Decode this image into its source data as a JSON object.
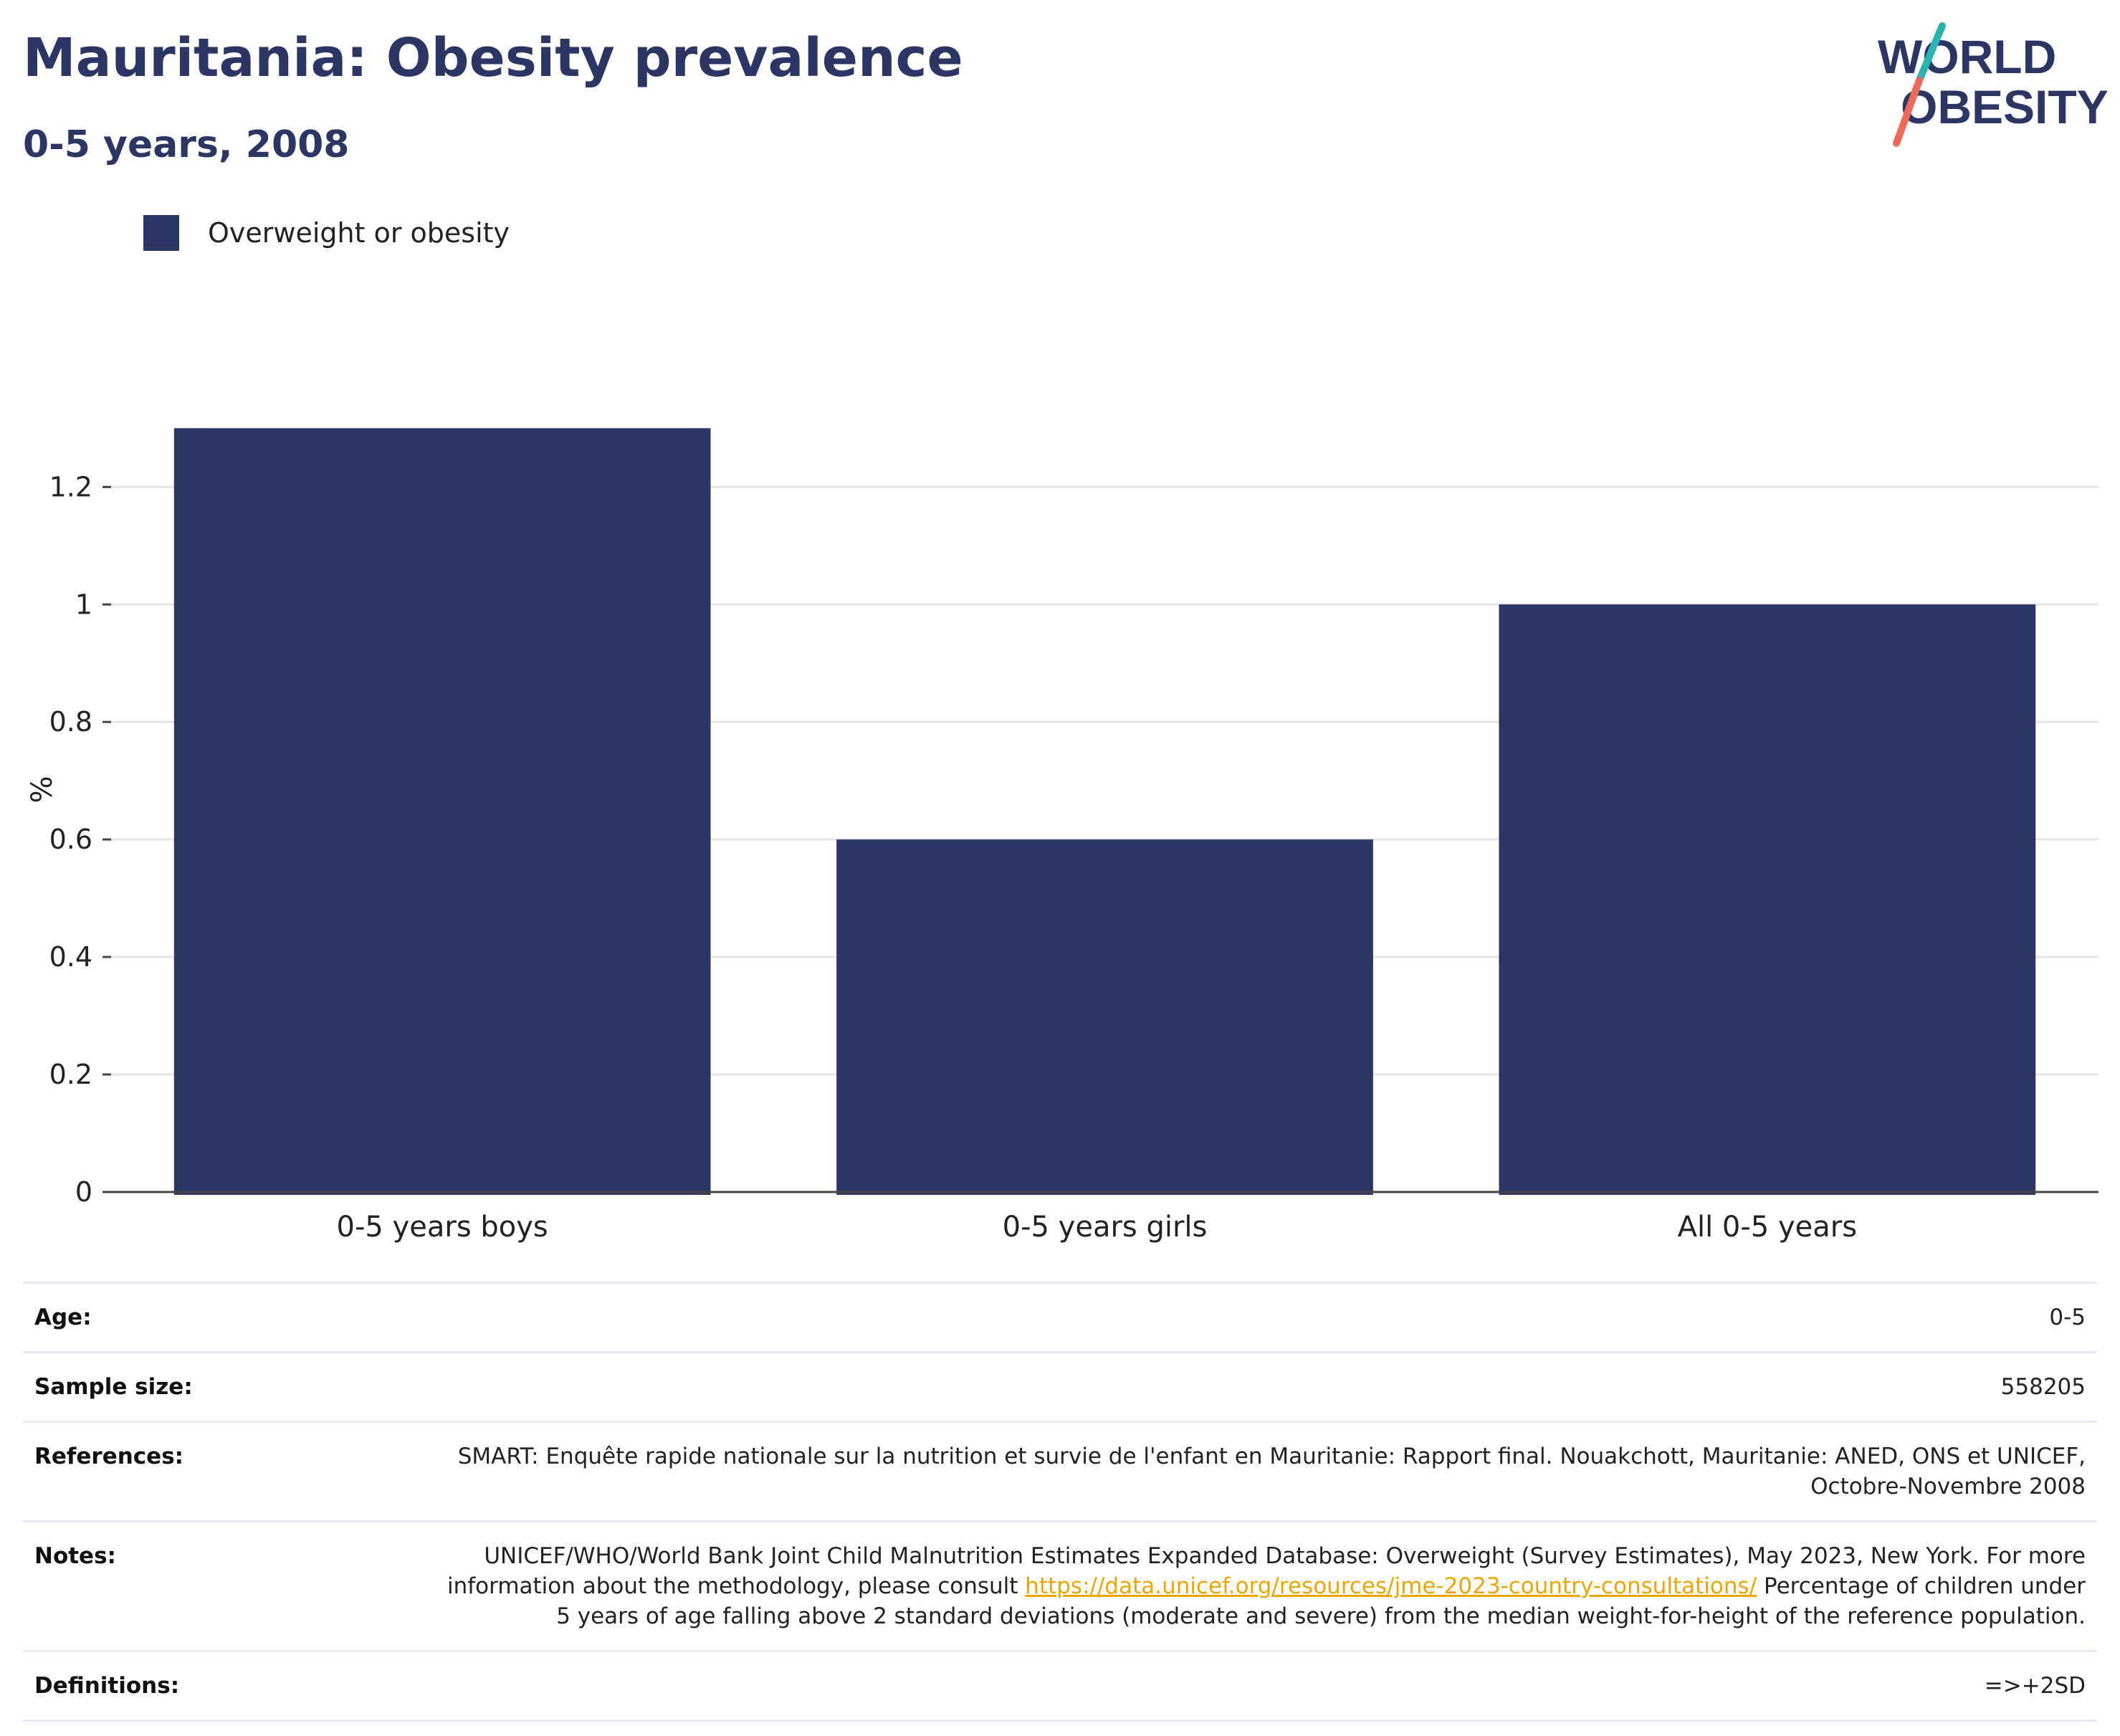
{
  "header": {
    "title": "Mauritania: Obesity prevalence",
    "subtitle": "0-5 years, 2008"
  },
  "logo": {
    "line1": "WORLD",
    "line2": "OBESITY"
  },
  "colors": {
    "bar": "#2a3663",
    "title": "#2b3664",
    "grid": "#e6e6e6",
    "link": "#f0a500"
  },
  "chart_data": {
    "type": "bar",
    "categories": [
      "0-5 years boys",
      "0-5 years girls",
      "All 0-5 years"
    ],
    "series": [
      {
        "name": "Overweight or obesity",
        "values": [
          1.3,
          0.6,
          1.0
        ]
      }
    ],
    "ylabel": "%",
    "xlabel": "",
    "ylim": [
      0,
      1.37
    ],
    "yticks": [
      0,
      0.2,
      0.4,
      0.6,
      0.8,
      1,
      1.2
    ],
    "ytick_labels": [
      "0",
      "0.2",
      "0.4",
      "0.6",
      "0.8",
      "1",
      "1.2"
    ],
    "grid": true,
    "legend_position": "top-left"
  },
  "info": {
    "age_label": "Age:",
    "age_value": "0-5",
    "sample_label": "Sample size:",
    "sample_value": "558205",
    "references_label": "References:",
    "references_value": "SMART: Enquête rapide nationale sur la nutrition et survie de l'enfant en Mauritanie: Rapport final. Nouakchott, Mauritanie: ANED, ONS et UNICEF, Octobre-Novembre 2008",
    "notes_label": "Notes:",
    "notes_before": "UNICEF/WHO/World Bank Joint Child Malnutrition Estimates Expanded Database: Overweight (Survey Estimates), May 2023, New York. For more information about the methodology, please consult ",
    "notes_link": "https://data.unicef.org/resources/jme-2023-country-consultations/",
    "notes_after": " Percentage of children under 5 years of age falling above 2 standard deviations (moderate and severe) from the median weight-for-height of the reference population.",
    "definitions_label": "Definitions:",
    "definitions_value": "=>+2SD"
  }
}
